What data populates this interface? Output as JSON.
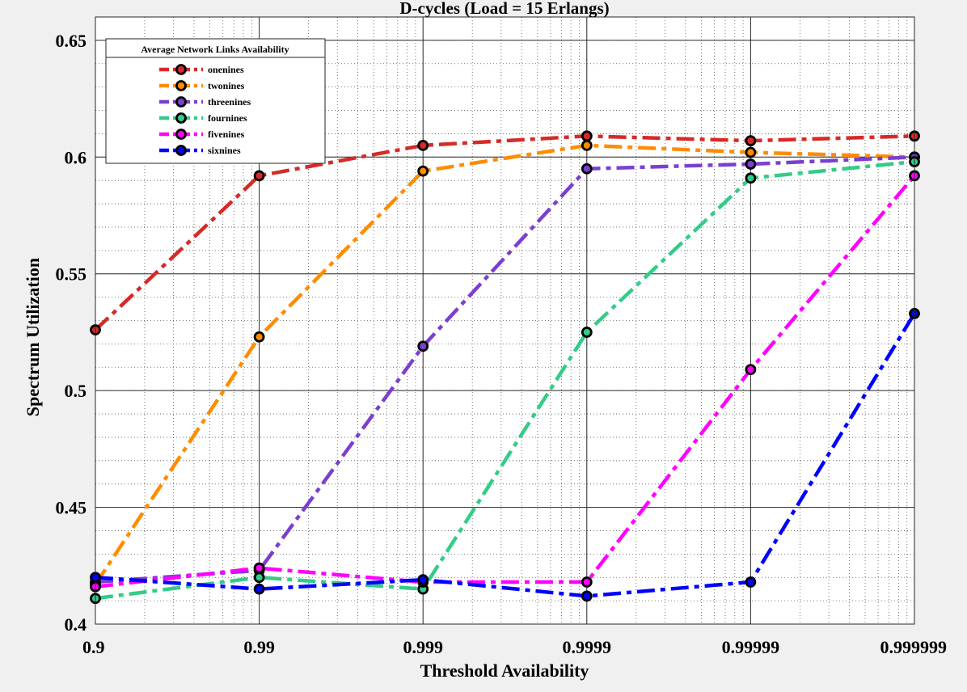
{
  "chart_data": {
    "type": "line",
    "title": "D-cycles (Load  = 15 Erlangs)",
    "xlabel": "Threshold Availability",
    "ylabel": "Spectrum Utilization",
    "x": [
      "0.9",
      "0.99",
      "0.999",
      "0.9999",
      "0.99999",
      "0.999999"
    ],
    "x_scale": "log",
    "ylim": [
      0.4,
      0.66
    ],
    "yticks": [
      "0.4",
      "0.45",
      "0.5",
      "0.55",
      "0.6",
      "0.65"
    ],
    "grid": true,
    "minor_grid": true,
    "legend": {
      "title": "Average Network Links Availability",
      "placement": "top-left"
    },
    "series": [
      {
        "name": "onenines",
        "color": "#d62a27",
        "values": [
          0.526,
          0.592,
          0.605,
          0.609,
          0.607,
          0.609
        ]
      },
      {
        "name": "twonines",
        "color": "#ff8c00",
        "values": [
          0.417,
          0.523,
          0.594,
          0.605,
          0.602,
          0.6
        ]
      },
      {
        "name": "threenines",
        "color": "#7b3fd0",
        "values": [
          0.418,
          0.423,
          0.519,
          0.595,
          0.597,
          0.6
        ]
      },
      {
        "name": "fournines",
        "color": "#33cc88",
        "values": [
          0.411,
          0.42,
          0.415,
          0.525,
          0.591,
          0.598
        ]
      },
      {
        "name": "fivenines",
        "color": "#ff00ff",
        "values": [
          0.416,
          0.424,
          0.418,
          0.418,
          0.509,
          0.592
        ]
      },
      {
        "name": "sixnines",
        "color": "#0000ff",
        "values": [
          0.42,
          0.415,
          0.419,
          0.412,
          0.418,
          0.533
        ]
      }
    ]
  }
}
